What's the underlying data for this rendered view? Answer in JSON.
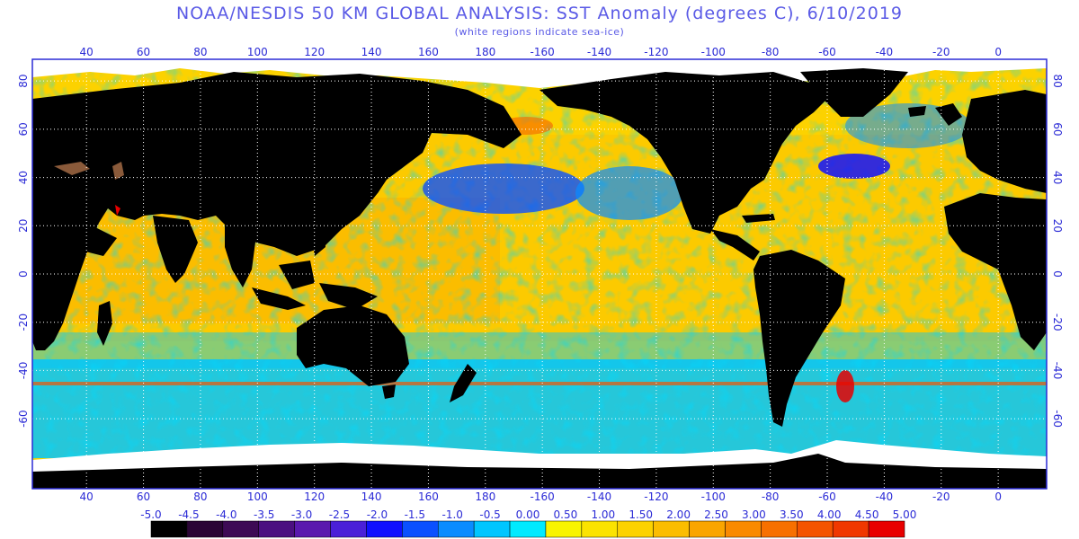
{
  "title": "NOAA/NESDIS 50 KM GLOBAL ANALYSIS: SST Anomaly (degrees C), 6/10/2019",
  "subtitle": "(white regions indicate sea-ice)",
  "map": {
    "lon_labels_top": [
      "40",
      "60",
      "80",
      "100",
      "120",
      "140",
      "160",
      "180",
      "-160",
      "-140",
      "-120",
      "-100",
      "-80",
      "-60",
      "-40",
      "-20",
      "0"
    ],
    "lon_labels_bottom": [
      "40",
      "60",
      "80",
      "100",
      "120",
      "140",
      "160",
      "180",
      "-160",
      "-140",
      "-120",
      "-100",
      "-80",
      "-60",
      "-40",
      "-20",
      "0"
    ],
    "lat_labels": [
      "80",
      "60",
      "40",
      "20",
      "0",
      "-20",
      "-40",
      "-60"
    ],
    "lon_values": [
      40,
      60,
      80,
      100,
      120,
      140,
      160,
      180,
      200,
      220,
      240,
      260,
      280,
      300,
      320,
      340,
      360
    ],
    "lat_values": [
      80,
      60,
      40,
      20,
      0,
      -20,
      -40,
      -60
    ],
    "lon_range": [
      21,
      377
    ],
    "lat_range": [
      -89,
      89
    ],
    "land_color": "#000000",
    "ice_color": "#ffffff",
    "frame_color": "#2b2bd6",
    "grid_color": "#ffffff",
    "label_color": "#2b2bd6",
    "ocean_warm_color": "#fcd200",
    "ocean_cool_color": "#00c6ff"
  },
  "colorbar": {
    "labels": [
      "-5.0",
      "-4.5",
      "-4.0",
      "-3.5",
      "-3.0",
      "-2.5",
      "-2.0",
      "-1.5",
      "-1.0",
      "-0.5",
      "0.00",
      "0.50",
      "1.00",
      "1.50",
      "2.00",
      "2.50",
      "3.00",
      "3.50",
      "4.00",
      "4.50",
      "5.00"
    ],
    "colors": [
      "#000000",
      "#2a0535",
      "#3d0a55",
      "#4b1080",
      "#5a19ae",
      "#4a20d8",
      "#1010ff",
      "#0a50ff",
      "#0a8cff",
      "#00c6ff",
      "#00eaff",
      "#f8f400",
      "#fbe300",
      "#fcd200",
      "#fbbd00",
      "#faa500",
      "#f98a00",
      "#f77000",
      "#f45400",
      "#f03800",
      "#e80000"
    ]
  }
}
